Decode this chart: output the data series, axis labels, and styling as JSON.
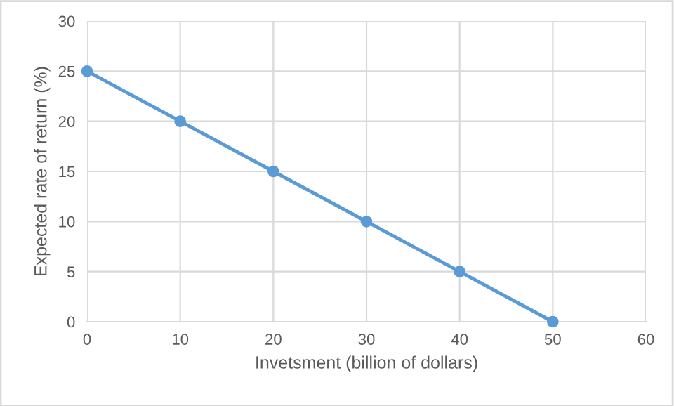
{
  "chart_data": {
    "type": "line",
    "xlabel": "Invetsment (billion of dollars)",
    "ylabel": "Expected rate of return (%)",
    "x": [
      0,
      10,
      20,
      30,
      40,
      50
    ],
    "series": [
      {
        "color": "#5b9bd5",
        "values": [
          25,
          20,
          15,
          10,
          5,
          0
        ]
      }
    ],
    "xlim": [
      0,
      60
    ],
    "xticks": [
      0,
      10,
      20,
      30,
      40,
      50,
      60
    ],
    "ylim": [
      0,
      30
    ],
    "yticks": [
      0,
      5,
      10,
      15,
      20,
      25,
      30
    ],
    "grid": true,
    "marker": "circle",
    "line_style": "solid",
    "legend": false
  }
}
